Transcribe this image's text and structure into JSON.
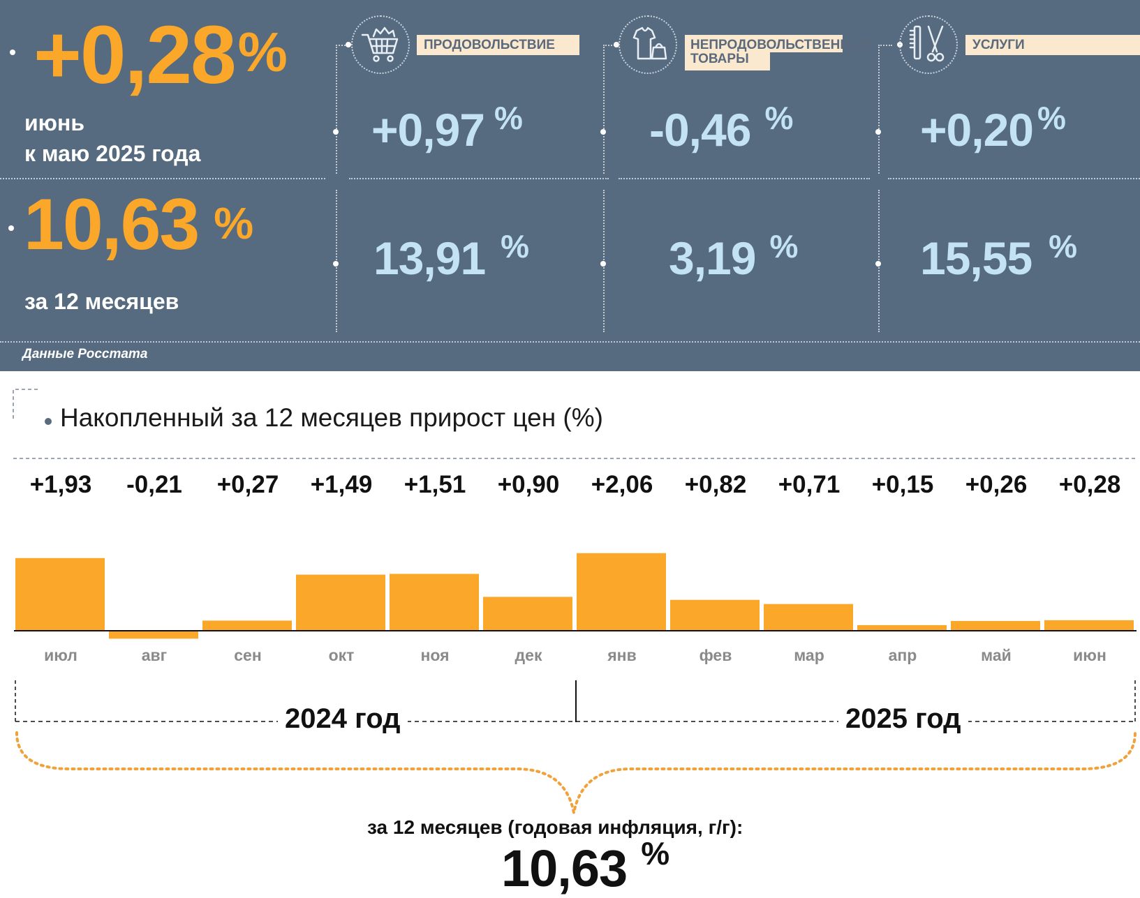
{
  "summary": {
    "monthly_value": "+0,28",
    "pct": "%",
    "monthly_caption_1": "июнь",
    "monthly_caption_2": "к маю 2025 года",
    "annual_value": "10,63",
    "annual_caption": "за 12 месяцев",
    "source": "Данные Росстата"
  },
  "categories": [
    {
      "name_line1": "ПРОДОВОЛЬСТВИЕ",
      "name_line2": "",
      "icon": "shopping-cart-icon",
      "monthly": "+0,97",
      "annual": "13,91"
    },
    {
      "name_line1": "НЕПРОДОВОЛЬСТВЕННЫЕ",
      "name_line2": "ТОВАРЫ",
      "icon": "clothes-bag-icon",
      "monthly": "-0,46",
      "annual": "3,19"
    },
    {
      "name_line1": "УСЛУГИ",
      "name_line2": "",
      "icon": "comb-scissors-icon",
      "monthly": "+0,20",
      "annual": "15,55"
    }
  ],
  "colors": {
    "panel": "#566b80",
    "accent": "#fba72a",
    "value_blue": "#c3e3f5",
    "label_bg": "#fbe9cf"
  },
  "chart_data": {
    "type": "bar",
    "title": "Накопленный за 12 месяцев прирост цен (%)",
    "categories": [
      "июл",
      "авг",
      "сен",
      "окт",
      "ноя",
      "дек",
      "янв",
      "фев",
      "мар",
      "апр",
      "май",
      "июн"
    ],
    "values": [
      1.93,
      -0.21,
      0.27,
      1.49,
      1.51,
      0.9,
      2.06,
      0.82,
      0.71,
      0.15,
      0.26,
      0.28
    ],
    "value_labels": [
      "+1,93",
      "-0,21",
      "+0,27",
      "+1,49",
      "+1,51",
      "+0,90",
      "+2,06",
      "+0,82",
      "+0,71",
      "+0,15",
      "+0,26",
      "+0,28"
    ],
    "years": [
      "2024 год",
      "2025 год"
    ],
    "bar_color": "#fba72a",
    "grid": false
  },
  "footer": {
    "label": "за 12 месяцев (годовая инфляция, г/г):",
    "value": "10,63",
    "pct": "%"
  }
}
